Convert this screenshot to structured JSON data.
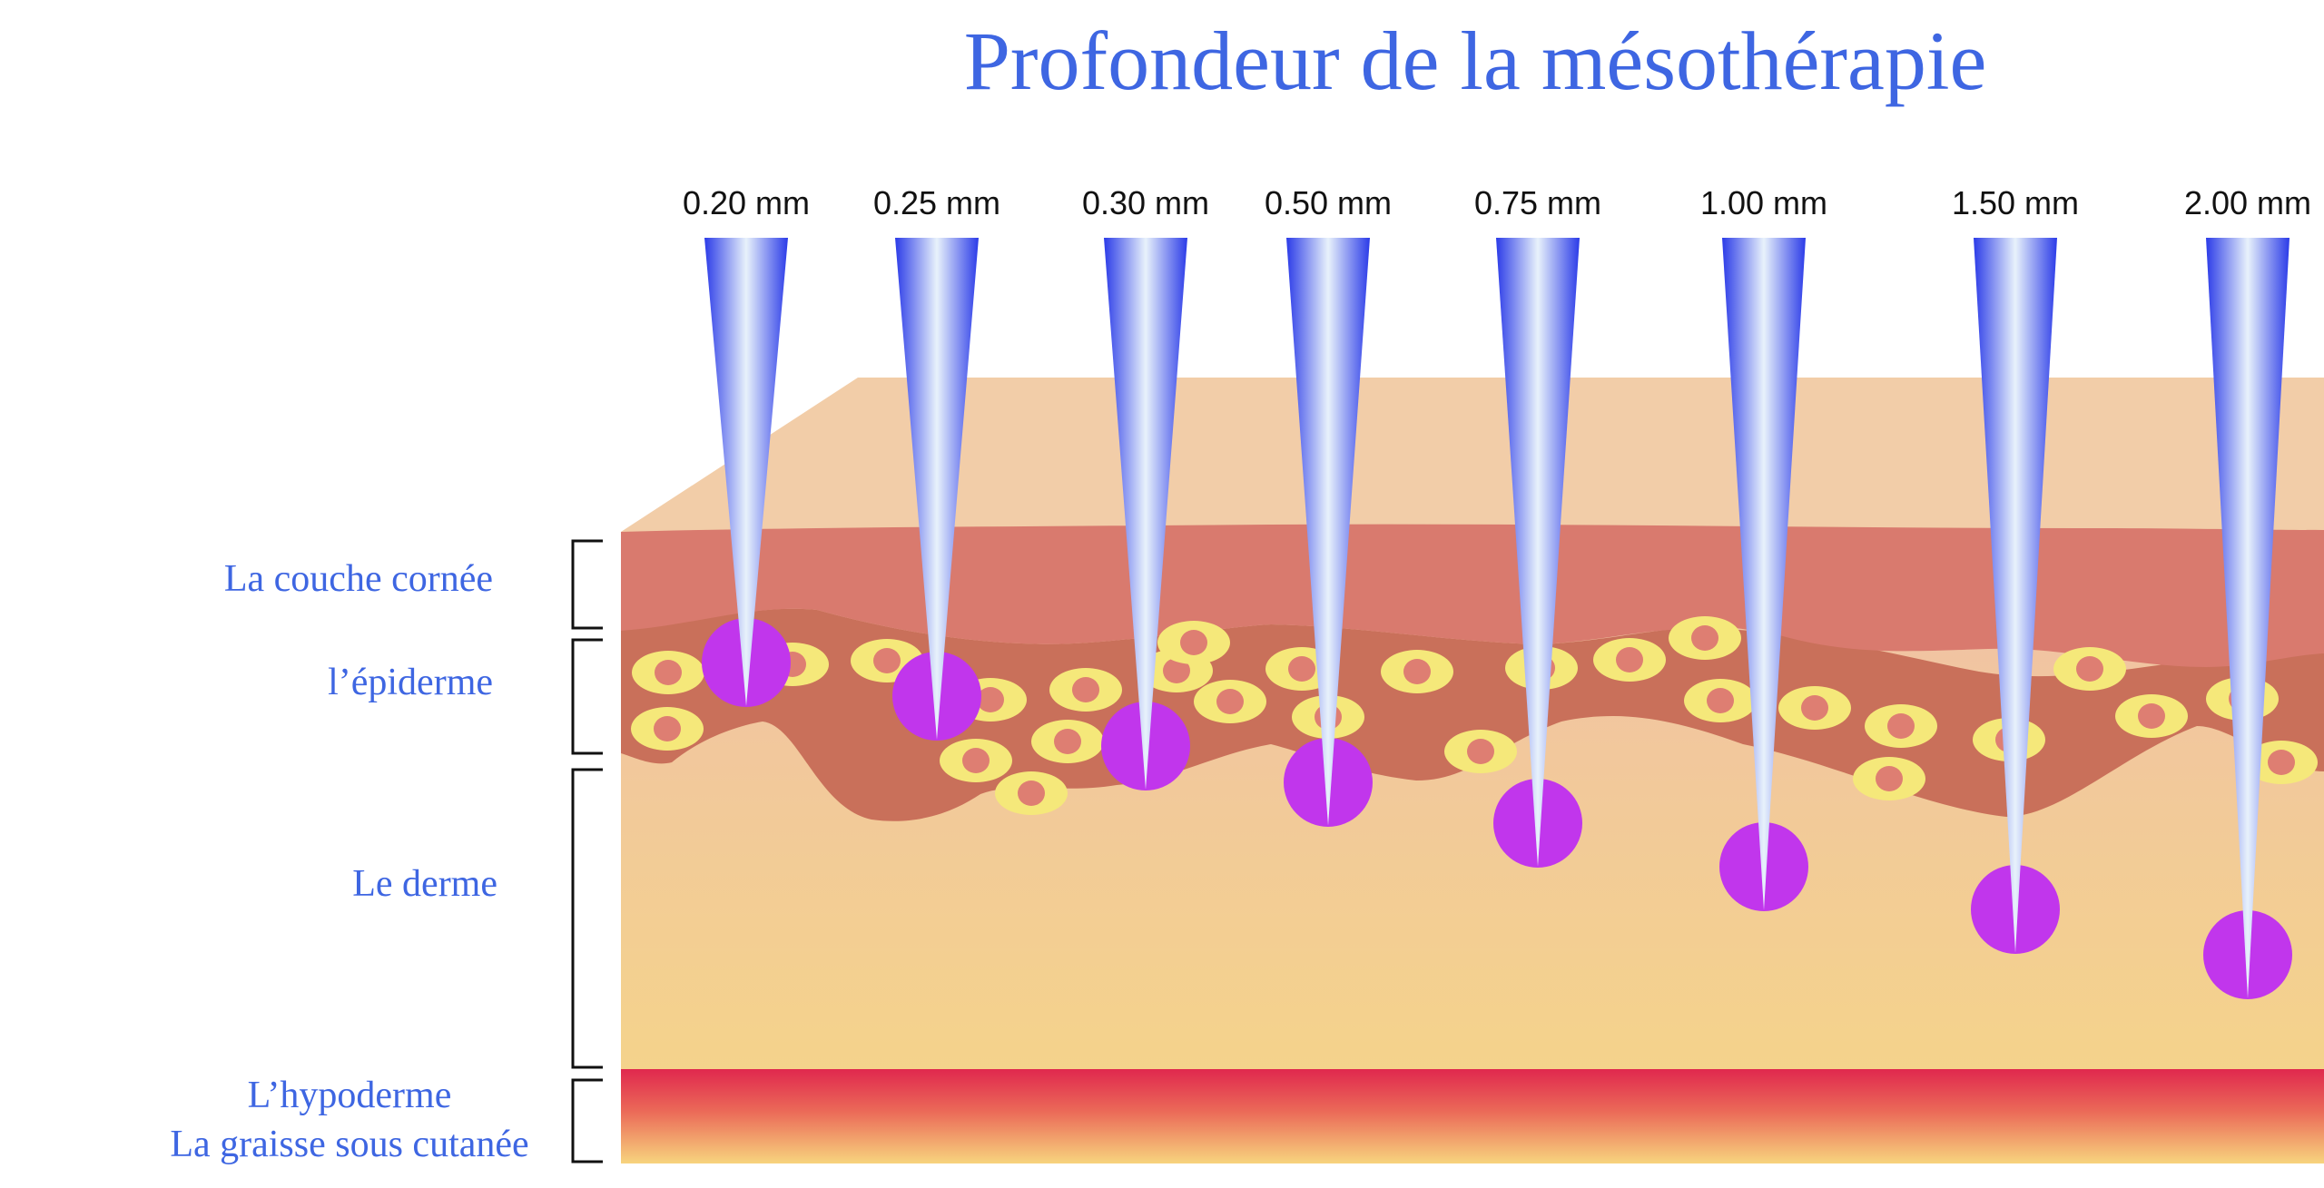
{
  "title": "Profondeur de la mésothérapie",
  "layers": [
    {
      "label": "La couche cornée"
    },
    {
      "label": "l’épiderme"
    },
    {
      "label": "Le derme"
    },
    {
      "label": "L’hypoderme"
    },
    {
      "label": "La graisse sous cutanée"
    }
  ],
  "needles": [
    {
      "depth_label": "0.20 mm"
    },
    {
      "depth_label": "0.25 mm"
    },
    {
      "depth_label": "0.30 mm"
    },
    {
      "depth_label": "0.50 mm"
    },
    {
      "depth_label": "0.75 mm"
    },
    {
      "depth_label": "1.00 mm"
    },
    {
      "depth_label": "1.50 mm"
    },
    {
      "depth_label": "2.00 mm"
    }
  ],
  "colors": {
    "title": "#3e66e2",
    "needle_edge": "#2b3be8",
    "needle_center": "#e8f2fb",
    "injection_dot": "#c136ec",
    "stratum_corneum": "#d97a6e",
    "epidermis": "#c9705a",
    "dermis_top": "#f0c0a8",
    "dermis_bottom": "#f4d38b",
    "hypodermis_top": "#e0284e",
    "hypodermis_bottom": "#f7d47e",
    "skin_top": "#f2cda8",
    "cell_outer": "#f5e87a",
    "cell_nucleus": "#de7e72"
  }
}
